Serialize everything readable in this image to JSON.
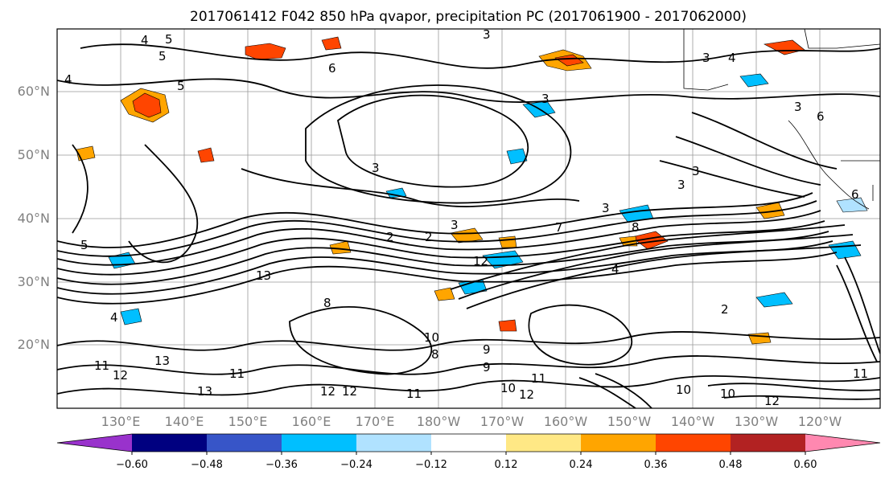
{
  "title": "2017061412 F042 850 hPa qvapor, precipitation PC (2017061900 - 2017062000)",
  "lat_labels": [
    "60°N",
    "50°N",
    "40°N",
    "30°N",
    "20°N"
  ],
  "lon_labels": [
    "130°E",
    "140°E",
    "150°E",
    "160°E",
    "170°E",
    "180°W",
    "170°W",
    "160°W",
    "150°W",
    "140°W",
    "130°W",
    "120°W"
  ],
  "colorbar": {
    "extend": "both",
    "colors": [
      "#9932cc",
      "#000080",
      "#3755c8",
      "#00bfff",
      "#b0e2ff",
      "#ffffff",
      "#ffe885",
      "#ffa500",
      "#ff4500",
      "#b22222",
      "#ff88b0"
    ],
    "tick_labels": [
      "−0.60",
      "−0.48",
      "−0.36",
      "−0.24",
      "−0.12",
      "0.12",
      "0.24",
      "0.36",
      "0.48",
      "0.60"
    ]
  },
  "contour_labels": [
    "4",
    "5",
    "3",
    "5",
    "6",
    "4",
    "5",
    "3",
    "4",
    "3",
    "3",
    "6",
    "6",
    "3",
    "3",
    "3",
    "3",
    "2",
    "2",
    "3",
    "8",
    "4",
    "7",
    "8",
    "12",
    "13",
    "5",
    "4",
    "2",
    "8",
    "9",
    "10",
    "13",
    "12",
    "13",
    "12",
    "11",
    "12",
    "12",
    "11",
    "10",
    "11",
    "10",
    "10",
    "12",
    "11",
    "9",
    "11"
  ]
}
